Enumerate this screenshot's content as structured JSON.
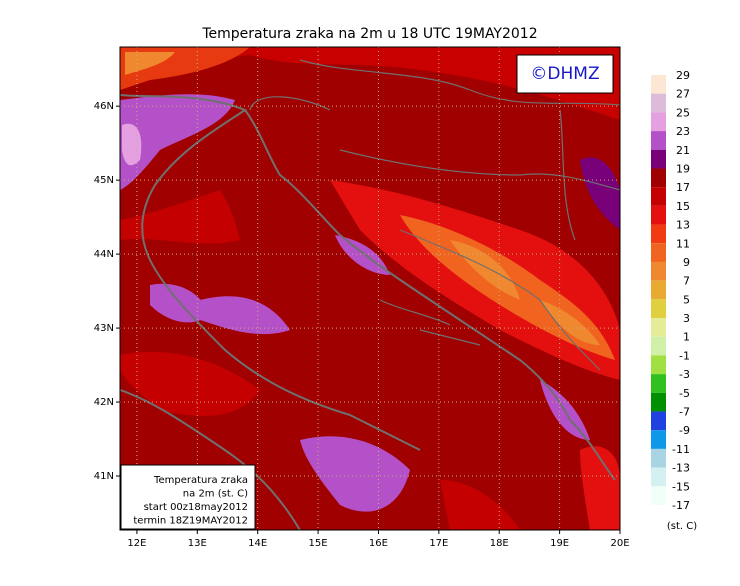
{
  "title": "Temperatura zraka na 2m u 18 UTC 19MAY2012",
  "logo": "©DHMZ",
  "map": {
    "xlim": [
      11.72,
      20
    ],
    "ylim": [
      40.27,
      46.8
    ],
    "grid": true,
    "xticks": [
      {
        "value": 12,
        "label": "12E"
      },
      {
        "value": 13,
        "label": "13E"
      },
      {
        "value": 14,
        "label": "14E"
      },
      {
        "value": 15,
        "label": "15E"
      },
      {
        "value": 16,
        "label": "16E"
      },
      {
        "value": 17,
        "label": "17E"
      },
      {
        "value": 18,
        "label": "18E"
      },
      {
        "value": 19,
        "label": "19E"
      },
      {
        "value": 20,
        "label": "20E"
      }
    ],
    "yticks": [
      {
        "value": 41,
        "label": "41N"
      },
      {
        "value": 42,
        "label": "42N"
      },
      {
        "value": 43,
        "label": "43N"
      },
      {
        "value": 44,
        "label": "44N"
      },
      {
        "value": 45,
        "label": "45N"
      },
      {
        "value": 46,
        "label": "46N"
      }
    ]
  },
  "info_box": {
    "lines": [
      "Temperatura zraka",
      "na 2m (st. C)",
      "start 00z18may2012",
      "termin 18Z19MAY2012"
    ]
  },
  "colorbar": {
    "levels": [
      29,
      27,
      25,
      23,
      21,
      19,
      17,
      15,
      13,
      11,
      9,
      7,
      5,
      3,
      1,
      -1,
      -3,
      -5,
      -7,
      -9,
      -11,
      -13,
      -15,
      -17
    ],
    "colors": [
      "#fce6d4",
      "#dcbcd8",
      "#e4a0e0",
      "#b450c8",
      "#780078",
      "#a00000",
      "#c40000",
      "#e41010",
      "#f03c10",
      "#f06420",
      "#f08830",
      "#e8aa30",
      "#e0d040",
      "#e4ec98",
      "#d0f0a8",
      "#a0e040",
      "#30c020",
      "#009000",
      "#2040e0",
      "#1098e8",
      "#a8d4e4",
      "#d4f0f0",
      "#f0fff8"
    ],
    "unit": "(st. C)"
  }
}
